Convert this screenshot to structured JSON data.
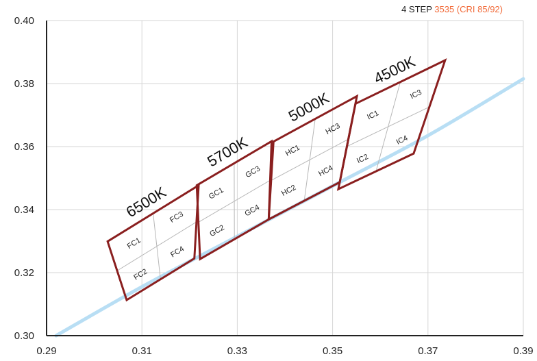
{
  "header": {
    "prefix": "4 STEP ",
    "highlight": "3535 (CRI 85/92)",
    "highlight_color": "#f26b3a"
  },
  "chart_data": {
    "type": "scatter",
    "title": "4 STEP 3535 (CRI 85/92)",
    "xlabel": "",
    "ylabel": "",
    "xlim": [
      0.29,
      0.39
    ],
    "ylim": [
      0.3,
      0.4
    ],
    "x_ticks": [
      "0.29",
      "0.31",
      "0.33",
      "0.35",
      "0.37",
      "0.39"
    ],
    "y_ticks": [
      "0.30",
      "0.32",
      "0.34",
      "0.36",
      "0.38",
      "0.40"
    ],
    "grid": true,
    "colors": {
      "bin_outline": "#8a1f1f",
      "curve": "#b8def4",
      "grid": "#d6d6d6"
    },
    "curve": {
      "name": "",
      "points": [
        [
          0.292,
          0.3
        ],
        [
          0.31,
          0.3155
        ],
        [
          0.33,
          0.3315
        ],
        [
          0.35,
          0.3475
        ],
        [
          0.37,
          0.3635
        ],
        [
          0.39,
          0.3815
        ]
      ]
    },
    "bins": [
      {
        "cct_label": "6500K",
        "corners": [
          [
            0.3028,
            0.3299
          ],
          [
            0.3219,
            0.3477
          ],
          [
            0.321,
            0.3245
          ],
          [
            0.3068,
            0.3113
          ]
        ],
        "cells": [
          "FC1",
          "FC3",
          "FC2",
          "FC4"
        ]
      },
      {
        "cct_label": "5700K",
        "corners": [
          [
            0.3215,
            0.3477
          ],
          [
            0.3372,
            0.3617
          ],
          [
            0.3366,
            0.3369
          ],
          [
            0.3222,
            0.3243
          ]
        ],
        "cells": [
          "GC1",
          "GC3",
          "GC2",
          "GC4"
        ]
      },
      {
        "cct_label": "5000K",
        "corners": [
          [
            0.3376,
            0.3616
          ],
          [
            0.3551,
            0.376
          ],
          [
            0.3515,
            0.3487
          ],
          [
            0.3366,
            0.3369
          ]
        ],
        "cells": [
          "HC1",
          "HC3",
          "HC2",
          "HC4"
        ]
      },
      {
        "cct_label": "4500K",
        "corners": [
          [
            0.3548,
            0.3736
          ],
          [
            0.3736,
            0.3874
          ],
          [
            0.367,
            0.3578
          ],
          [
            0.3512,
            0.3465
          ]
        ],
        "cells": [
          "IC1",
          "IC3",
          "IC2",
          "IC4"
        ]
      }
    ]
  }
}
